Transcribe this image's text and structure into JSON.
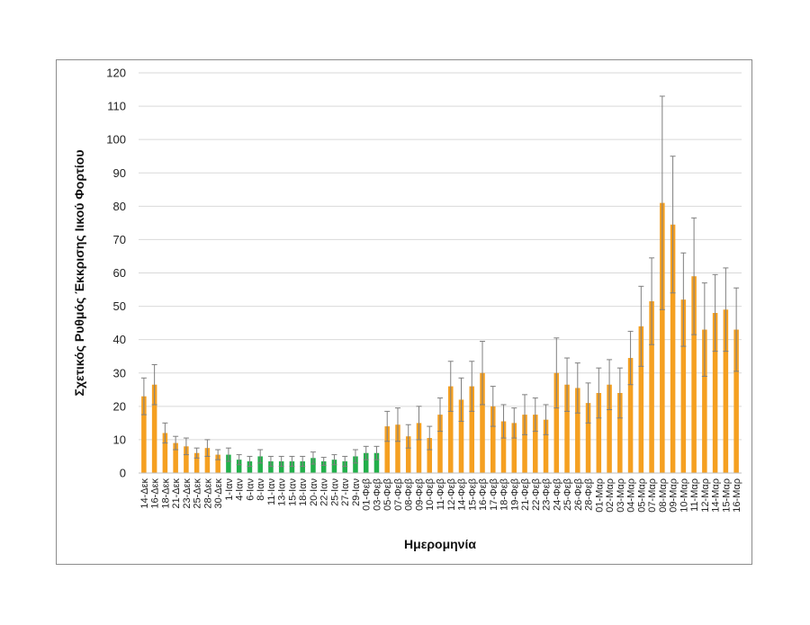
{
  "chart_data": {
    "type": "bar",
    "xlabel": "Ημερομηνία",
    "ylabel": "Σχετικός Ρυθμός Έκκρισης Ιικού Φορτίου",
    "ylim": [
      0,
      120
    ],
    "yticks": [
      0,
      10,
      20,
      30,
      40,
      50,
      60,
      70,
      80,
      90,
      100,
      110,
      120
    ],
    "grid": true,
    "legend": "none",
    "colors": {
      "orange": "#f5a021",
      "green": "#22b04a",
      "error_bar": "#7f7f7f",
      "grid": "#d9d9d9"
    },
    "points": [
      {
        "date": "14-Δεκ",
        "value": 23,
        "err": 5.5,
        "color": "orange",
        "label": true
      },
      {
        "date": "16-Δεκ",
        "value": 26.5,
        "err": 6,
        "color": "orange",
        "label": true
      },
      {
        "date": "18-Δεκ",
        "value": 12,
        "err": 3,
        "color": "orange",
        "label": true
      },
      {
        "date": "21-Δεκ",
        "value": 9,
        "err": 2,
        "color": "orange",
        "label": true
      },
      {
        "date": "23-Δεκ",
        "value": 8,
        "err": 2.5,
        "color": "orange",
        "label": true
      },
      {
        "date": "25-Δεκ",
        "value": 6,
        "err": 1.5,
        "color": "orange",
        "label": true
      },
      {
        "date": "28-Δεκ",
        "value": 7.5,
        "err": 2.5,
        "color": "orange",
        "label": true
      },
      {
        "date": "30-Δεκ",
        "value": 5.5,
        "err": 1.5,
        "color": "orange",
        "label": true
      },
      {
        "date": "1-Ιαν",
        "value": 5.5,
        "err": 2,
        "color": "green",
        "label": true
      },
      {
        "date": "4-Ιαν",
        "value": 4,
        "err": 1.5,
        "color": "green",
        "label": true
      },
      {
        "date": "6-Ιαν",
        "value": 3.5,
        "err": 1.5,
        "color": "green",
        "label": true
      },
      {
        "date": "8-Ιαν",
        "value": 5,
        "err": 2,
        "color": "green",
        "label": true
      },
      {
        "date": "11-Ιαν",
        "value": 3.5,
        "err": 1.5,
        "color": "green",
        "label": true
      },
      {
        "date": "13-Ιαν",
        "value": 3.5,
        "err": 1.5,
        "color": "green",
        "label": true
      },
      {
        "date": "15-Ιαν",
        "value": 3.5,
        "err": 1.5,
        "color": "green",
        "label": true
      },
      {
        "date": "18-Ιαν",
        "value": 3.5,
        "err": 1.5,
        "color": "green",
        "label": true
      },
      {
        "date": "20-Ιαν",
        "value": 4.5,
        "err": 1.8,
        "color": "green",
        "label": true
      },
      {
        "date": "22-Ιαν",
        "value": 3.5,
        "err": 1.2,
        "color": "green",
        "label": true
      },
      {
        "date": "25-Ιαν",
        "value": 4,
        "err": 1.5,
        "color": "green",
        "label": true
      },
      {
        "date": "27-Ιαν",
        "value": 3.5,
        "err": 1.5,
        "color": "green",
        "label": true
      },
      {
        "date": "29-Ιαν",
        "value": 5,
        "err": 2,
        "color": "green",
        "label": true
      },
      {
        "date": "01-Φεβ",
        "value": 6,
        "err": 2,
        "color": "green",
        "label": true
      },
      {
        "date": "03-Φεβ",
        "value": 6,
        "err": 2,
        "color": "green",
        "label": true
      },
      {
        "date": "05-Φεβ",
        "value": 14,
        "err": 4.5,
        "color": "orange",
        "label": true
      },
      {
        "date": "07-Φεβ",
        "value": 14.5,
        "err": 5,
        "color": "orange",
        "label": true
      },
      {
        "date": "08-Φεβ",
        "value": 11,
        "err": 3.5,
        "color": "orange",
        "label": true
      },
      {
        "date": "09-Φεβ",
        "value": 15,
        "err": 5,
        "color": "orange",
        "label": true
      },
      {
        "date": "10-Φεβ",
        "value": 10.5,
        "err": 3.5,
        "color": "orange",
        "label": true
      },
      {
        "date": "11-Φεβ",
        "value": 17.5,
        "err": 5,
        "color": "orange",
        "label": true
      },
      {
        "date": "12-Φεβ",
        "value": 26,
        "err": 7.5,
        "color": "orange",
        "label": true
      },
      {
        "date": "14-Φεβ",
        "value": 22,
        "err": 6.5,
        "color": "orange",
        "label": true
      },
      {
        "date": "15-Φεβ",
        "value": 26,
        "err": 7.5,
        "color": "orange",
        "label": true
      },
      {
        "date": "16-Φεβ",
        "value": 30,
        "err": 9.5,
        "color": "orange",
        "label": true
      },
      {
        "date": "17-Φεβ",
        "value": 20,
        "err": 6,
        "color": "orange",
        "label": true
      },
      {
        "date": "18-Φεβ",
        "value": 15.5,
        "err": 5,
        "color": "orange",
        "label": true
      },
      {
        "date": "19-Φεβ",
        "value": 15,
        "err": 4.5,
        "color": "orange",
        "label": true
      },
      {
        "date": "21-Φεβ",
        "value": 17.5,
        "err": 6,
        "color": "orange",
        "label": true
      },
      {
        "date": "22-Φεβ",
        "value": 17.5,
        "err": 5,
        "color": "orange",
        "label": true
      },
      {
        "date": "23-Φεβ",
        "value": 16,
        "err": 4.5,
        "color": "orange",
        "label": true
      },
      {
        "date": "24-Φεβ",
        "value": 30,
        "err": 10.5,
        "color": "orange",
        "label": true
      },
      {
        "date": "25-Φεβ",
        "value": 26.5,
        "err": 8,
        "color": "orange",
        "label": true
      },
      {
        "date": "26-Φεβ",
        "value": 25.5,
        "err": 7.5,
        "color": "orange",
        "label": true
      },
      {
        "date": "28-Φεβ",
        "value": 21,
        "err": 6,
        "color": "orange",
        "label": true
      },
      {
        "date": "01-Μαρ",
        "value": 24,
        "err": 7.5,
        "color": "orange",
        "label": true
      },
      {
        "date": "02-Μαρ",
        "value": 26.5,
        "err": 7.5,
        "color": "orange",
        "label": true
      },
      {
        "date": "03-Μαρ",
        "value": 24,
        "err": 7.5,
        "color": "orange",
        "label": true
      },
      {
        "date": "04-Μαρ",
        "value": 34.5,
        "err": 8,
        "color": "orange",
        "label": true
      },
      {
        "date": "05-Μαρ",
        "value": 44,
        "err": 12,
        "color": "orange",
        "label": true
      },
      {
        "date": "07-Μαρ",
        "value": 51.5,
        "err": 13,
        "color": "orange",
        "label": true
      },
      {
        "date": "08-Μαρ",
        "value": 81,
        "err": 32,
        "color": "orange",
        "label": true
      },
      {
        "date": "09-Μαρ",
        "value": 74.5,
        "err": 20.5,
        "color": "orange",
        "label": true
      },
      {
        "date": "10-Μαρ",
        "value": 52,
        "err": 14,
        "color": "orange",
        "label": true
      },
      {
        "date": "11-Μαρ",
        "value": 59,
        "err": 17.5,
        "color": "orange",
        "label": true
      },
      {
        "date": "12-Μαρ",
        "value": 43,
        "err": 14,
        "color": "orange",
        "label": true
      },
      {
        "date": "14-Μαρ",
        "value": 48,
        "err": 11.5,
        "color": "orange",
        "label": true
      },
      {
        "date": "15-Μαρ",
        "value": 49,
        "err": 12.5,
        "color": "orange",
        "label": true
      },
      {
        "date": "16-Μαρ",
        "value": 43,
        "err": 12.5,
        "color": "orange",
        "label": true
      }
    ]
  }
}
